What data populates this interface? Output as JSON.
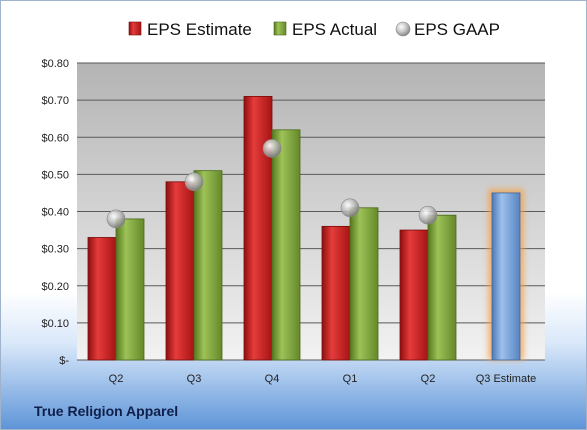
{
  "footer": {
    "company": "True Religion Apparel"
  },
  "colors": {
    "estimate": "#cc1a1a",
    "actual": "#7ea33a",
    "gaap": "#b8b8b8",
    "projected": "#7ea7dc",
    "projected_glow": "#f4a24a"
  },
  "chart_data": {
    "type": "bar",
    "title": "",
    "xlabel": "",
    "ylabel": "",
    "ylim": [
      0,
      0.8
    ],
    "yticks": [
      0,
      0.1,
      0.2,
      0.3,
      0.4,
      0.5,
      0.6,
      0.7,
      0.8
    ],
    "ytick_labels": [
      "$-",
      "$0.10",
      "$0.20",
      "$0.30",
      "$0.40",
      "$0.50",
      "$0.60",
      "$0.70",
      "$0.80"
    ],
    "grid": true,
    "legend_position": "top",
    "categories": [
      "Q2",
      "Q3",
      "Q4",
      "Q1",
      "Q2",
      "Q3 Estimate"
    ],
    "series": [
      {
        "name": "EPS Estimate",
        "kind": "bar",
        "values": [
          0.33,
          0.48,
          0.71,
          0.36,
          0.35,
          null
        ]
      },
      {
        "name": "EPS Actual",
        "kind": "bar",
        "values": [
          0.38,
          0.51,
          0.62,
          0.41,
          0.39,
          null
        ]
      },
      {
        "name": "EPS GAAP",
        "kind": "marker",
        "values": [
          0.38,
          0.48,
          0.57,
          0.41,
          0.39,
          null
        ]
      },
      {
        "name": "",
        "kind": "bar",
        "values": [
          null,
          null,
          null,
          null,
          null,
          0.45
        ]
      }
    ]
  }
}
